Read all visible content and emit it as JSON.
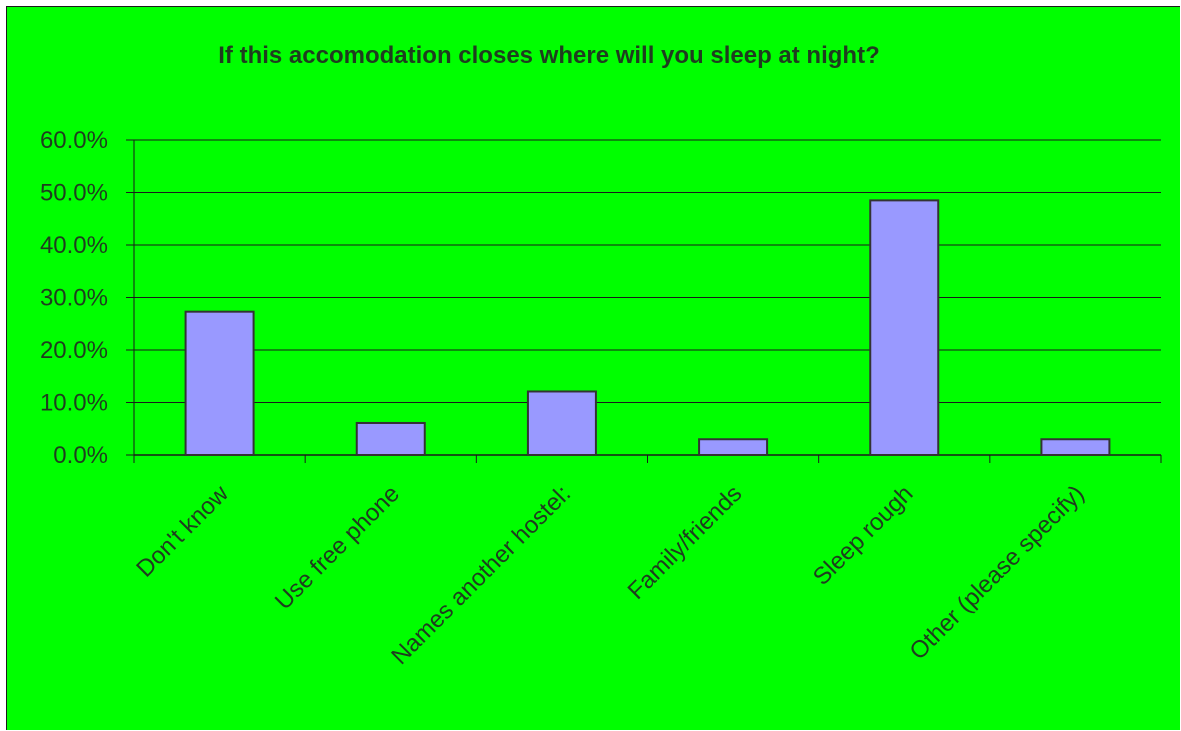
{
  "chart_data": {
    "type": "bar",
    "title": "If this accomodation closes where will you sleep at night?",
    "categories": [
      "Don't know",
      "Use free phone",
      "Names another hostel:",
      "Family/friends",
      "Sleep rough",
      "Other (please specify)"
    ],
    "values": [
      27.3,
      6.1,
      12.1,
      3.0,
      48.5,
      3.0
    ],
    "value_unit": "%",
    "xlabel": "",
    "ylabel": "",
    "ylim": [
      0,
      60
    ],
    "yticks": [
      "0.0%",
      "10.0%",
      "20.0%",
      "30.0%",
      "40.0%",
      "50.0%",
      "60.0%"
    ],
    "grid": "horizontal",
    "legend": "none",
    "colors": {
      "background": "#00ff00",
      "bar_fill": "#9999ff",
      "bar_stroke": "#333333",
      "gridline": "#1a1a1a",
      "text": "#1f3d1f"
    }
  }
}
